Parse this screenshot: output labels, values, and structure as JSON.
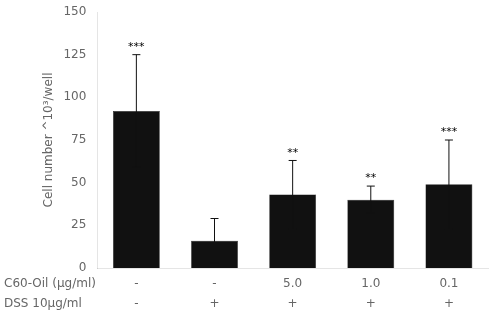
{
  "chart_data": {
    "type": "bar",
    "categories": [
      [
        "-",
        "-"
      ],
      [
        "-",
        "+"
      ],
      [
        "5.0",
        "+"
      ],
      [
        "1.0",
        "+"
      ],
      [
        "0.1",
        "+"
      ]
    ],
    "category_rows": [
      "C60-Oil (μg/ml)",
      "DSS 10μg/ml"
    ],
    "values": [
      92,
      16,
      43,
      40,
      49
    ],
    "errors": [
      33,
      13,
      20,
      8,
      26
    ],
    "significance": [
      "***",
      null,
      "**",
      "**",
      "***"
    ],
    "ylabel": "Cell number ^10³/well",
    "color": "#111111",
    "ylim": [
      0,
      150
    ],
    "yticks": [
      0,
      25,
      50,
      75,
      100,
      125,
      150
    ],
    "grid": false
  }
}
